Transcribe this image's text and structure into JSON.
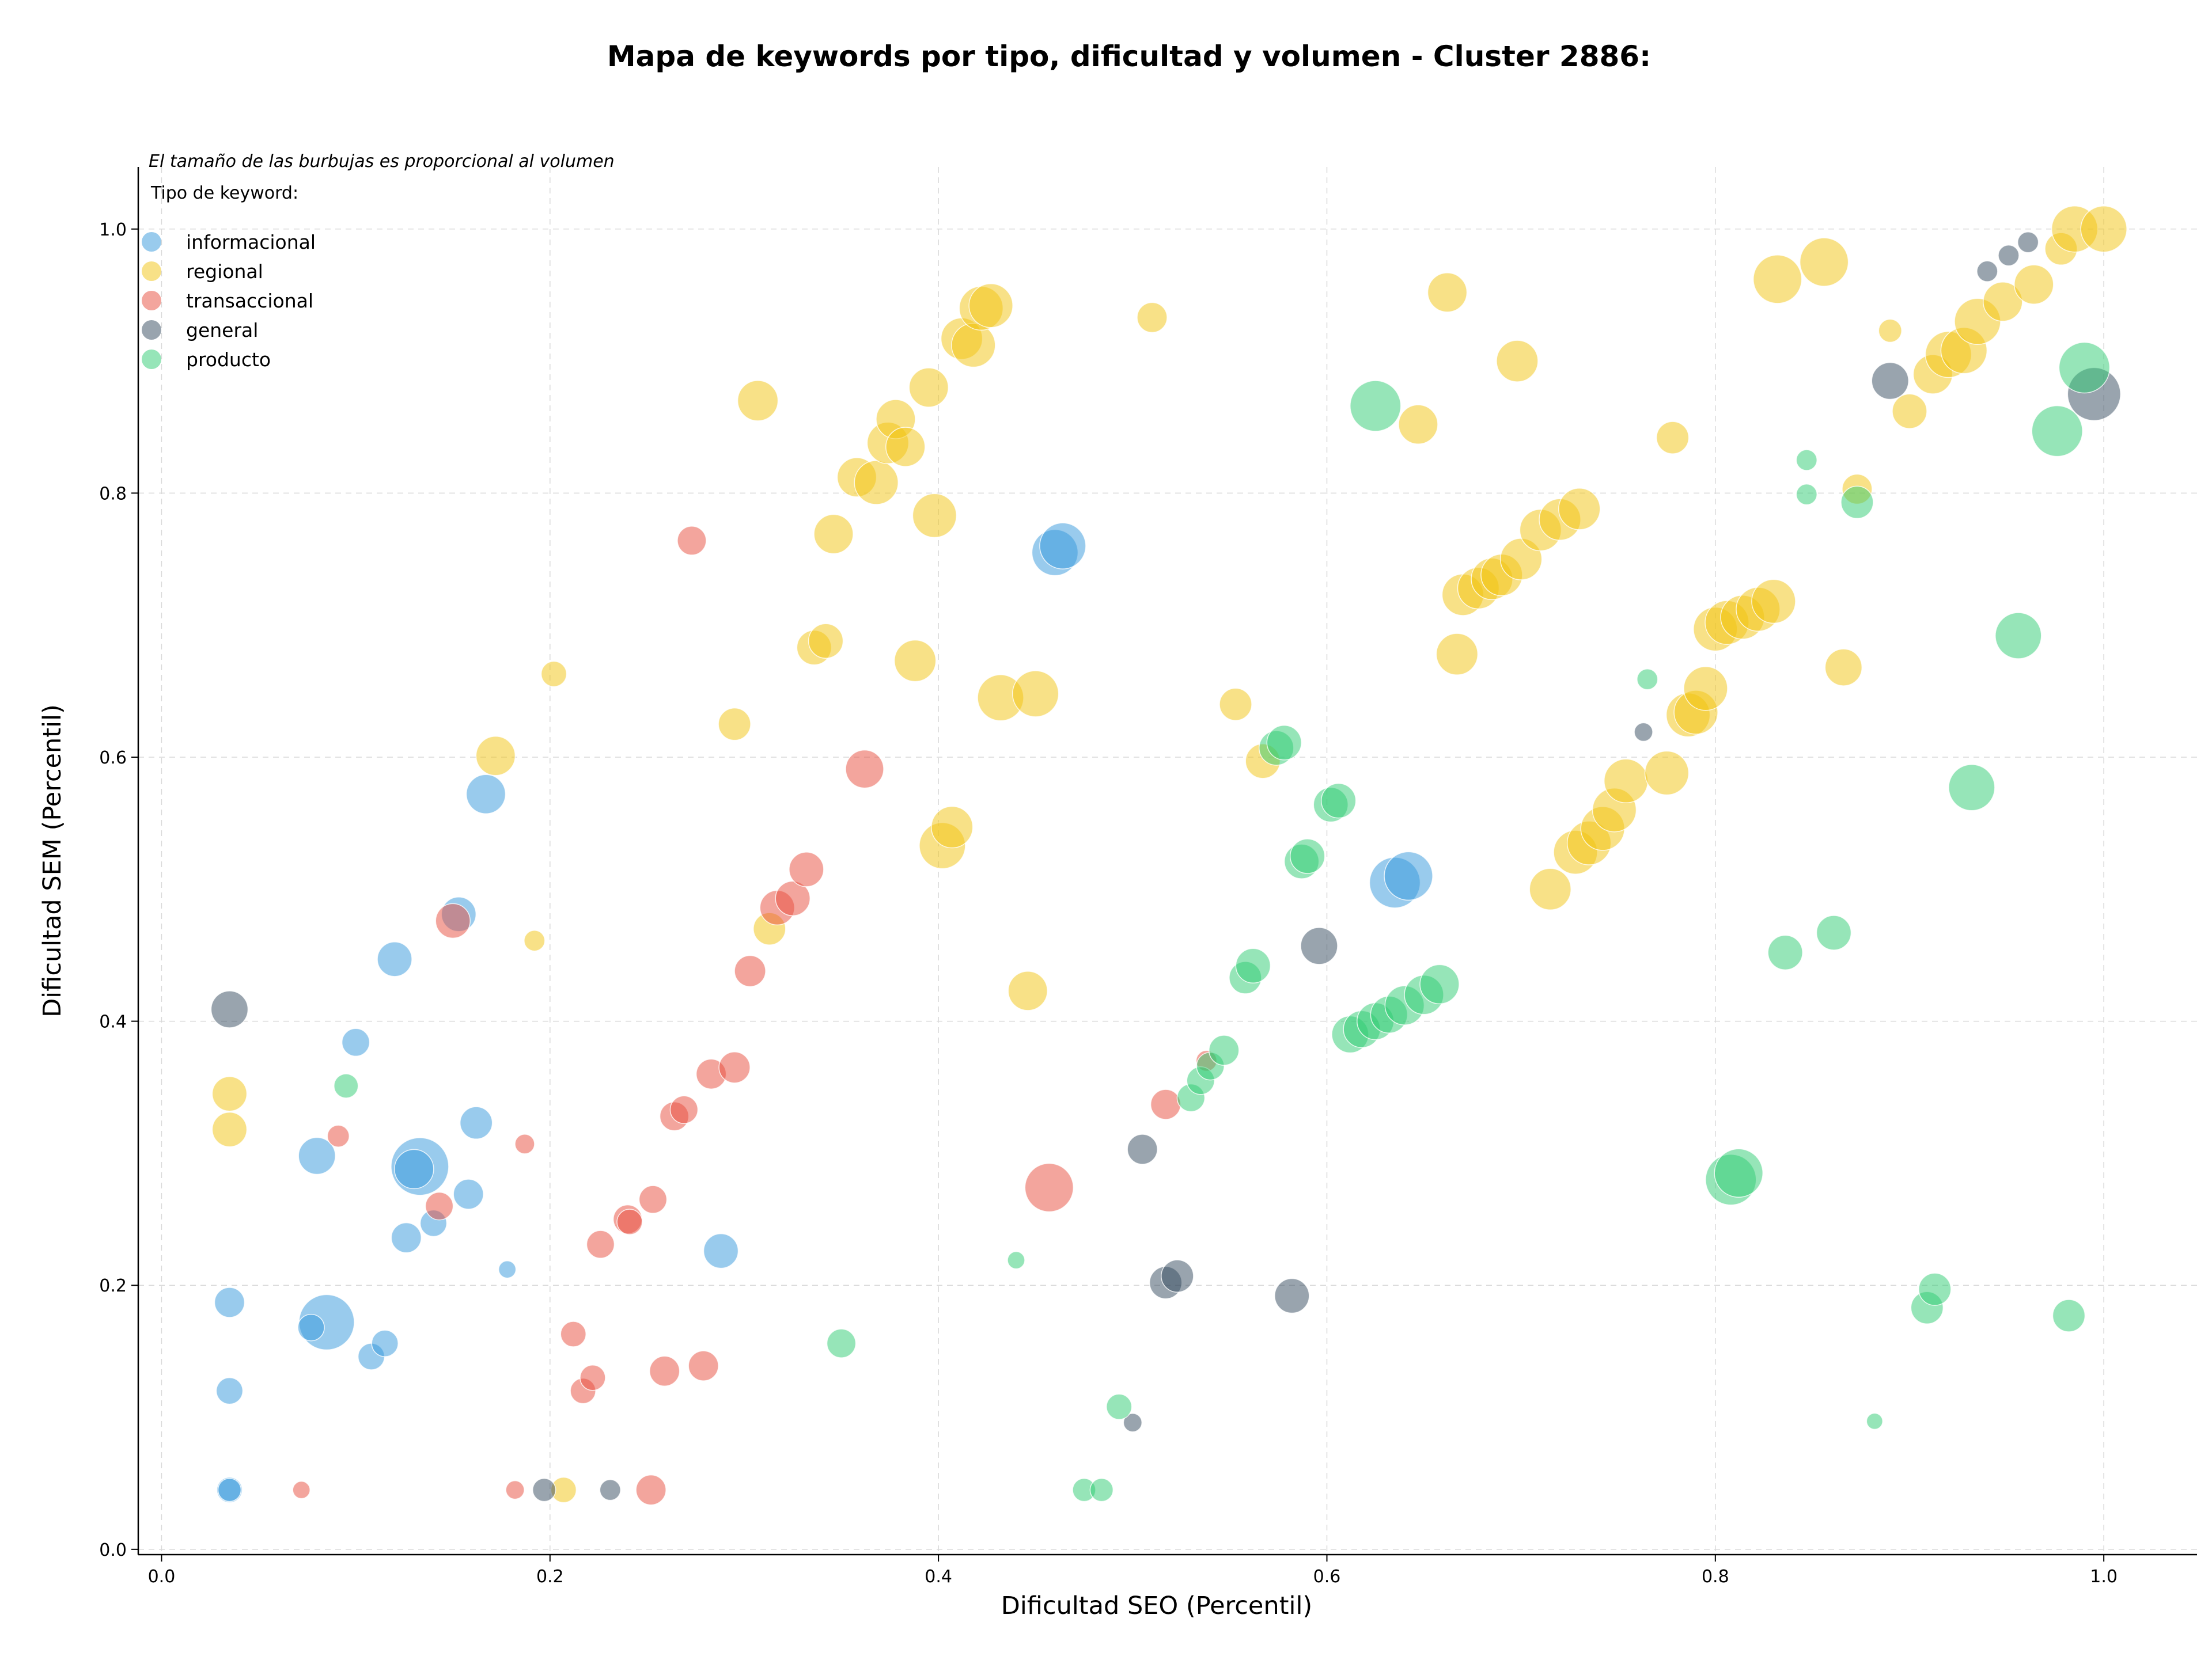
{
  "chart_data": {
    "type": "scatter",
    "title": "Mapa de keywords por tipo, dificultad y volumen - Cluster 2886:",
    "xlabel": "Dificultad SEO (Percentil)",
    "ylabel": "Dificultad SEM (Percentil)",
    "xlim": [
      -0.012,
      1.048
    ],
    "ylim": [
      -0.004,
      1.047
    ],
    "xticks": [
      0.0,
      0.2,
      0.4,
      0.6,
      0.8,
      1.0
    ],
    "yticks": [
      0.0,
      0.2,
      0.4,
      0.6,
      0.8,
      1.0
    ],
    "xtick_labels": [
      "0.0",
      "0.2",
      "0.4",
      "0.6",
      "0.8",
      "1.0"
    ],
    "ytick_labels": [
      "0.0",
      "0.2",
      "0.4",
      "0.6",
      "0.8",
      "1.0"
    ],
    "grid": true,
    "legend_title": "Tipo de keyword:",
    "legend_note": "El tamaño de las burbujas es proporcional al volumen",
    "legend_position": "top-left",
    "series": [
      {
        "name": "informacional",
        "color": "#3498db",
        "points": [
          [
            0.035,
            0.045,
            22
          ],
          [
            0.035,
            0.045,
            20
          ],
          [
            0.035,
            0.12,
            23
          ],
          [
            0.035,
            0.187,
            26
          ],
          [
            0.085,
            0.172,
            48
          ],
          [
            0.077,
            0.168,
            23
          ],
          [
            0.108,
            0.146,
            23
          ],
          [
            0.115,
            0.156,
            23
          ],
          [
            0.08,
            0.298,
            32
          ],
          [
            0.126,
            0.236,
            26
          ],
          [
            0.14,
            0.247,
            23
          ],
          [
            0.133,
            0.29,
            50
          ],
          [
            0.13,
            0.288,
            34
          ],
          [
            0.158,
            0.269,
            26
          ],
          [
            0.162,
            0.323,
            28
          ],
          [
            0.12,
            0.447,
            30
          ],
          [
            0.1,
            0.384,
            24
          ],
          [
            0.153,
            0.481,
            30
          ],
          [
            0.167,
            0.572,
            34
          ],
          [
            0.178,
            0.212,
            15
          ],
          [
            0.288,
            0.226,
            30
          ],
          [
            0.46,
            0.755,
            40
          ],
          [
            0.464,
            0.76,
            40
          ],
          [
            0.635,
            0.505,
            44
          ],
          [
            0.642,
            0.51,
            42
          ]
        ]
      },
      {
        "name": "regional",
        "color": "#f1c40f",
        "points": [
          [
            0.035,
            0.345,
            30
          ],
          [
            0.035,
            0.318,
            30
          ],
          [
            0.172,
            0.601,
            34
          ],
          [
            0.202,
            0.663,
            22
          ],
          [
            0.192,
            0.461,
            18
          ],
          [
            0.207,
            0.045,
            22
          ],
          [
            0.307,
            0.87,
            35
          ],
          [
            0.295,
            0.625,
            28
          ],
          [
            0.313,
            0.47,
            28
          ],
          [
            0.346,
            0.769,
            34
          ],
          [
            0.336,
            0.683,
            30
          ],
          [
            0.342,
            0.688,
            30
          ],
          [
            0.358,
            0.812,
            34
          ],
          [
            0.368,
            0.808,
            38
          ],
          [
            0.374,
            0.838,
            36
          ],
          [
            0.378,
            0.856,
            34
          ],
          [
            0.383,
            0.835,
            34
          ],
          [
            0.395,
            0.88,
            34
          ],
          [
            0.398,
            0.783,
            38
          ],
          [
            0.388,
            0.673,
            36
          ],
          [
            0.402,
            0.533,
            40
          ],
          [
            0.407,
            0.547,
            36
          ],
          [
            0.412,
            0.917,
            36
          ],
          [
            0.418,
            0.912,
            38
          ],
          [
            0.422,
            0.94,
            38
          ],
          [
            0.427,
            0.942,
            38
          ],
          [
            0.432,
            0.645,
            40
          ],
          [
            0.45,
            0.648,
            40
          ],
          [
            0.446,
            0.423,
            34
          ],
          [
            0.51,
            0.933,
            26
          ],
          [
            0.553,
            0.64,
            28
          ],
          [
            0.567,
            0.597,
            30
          ],
          [
            0.647,
            0.852,
            34
          ],
          [
            0.662,
            0.952,
            34
          ],
          [
            0.698,
            0.9,
            36
          ],
          [
            0.667,
            0.678,
            36
          ],
          [
            0.67,
            0.723,
            36
          ],
          [
            0.678,
            0.728,
            36
          ],
          [
            0.685,
            0.735,
            36
          ],
          [
            0.69,
            0.738,
            36
          ],
          [
            0.7,
            0.75,
            36
          ],
          [
            0.71,
            0.772,
            36
          ],
          [
            0.72,
            0.78,
            36
          ],
          [
            0.73,
            0.788,
            36
          ],
          [
            0.715,
            0.5,
            36
          ],
          [
            0.728,
            0.528,
            38
          ],
          [
            0.735,
            0.535,
            38
          ],
          [
            0.742,
            0.546,
            38
          ],
          [
            0.748,
            0.56,
            38
          ],
          [
            0.754,
            0.582,
            38
          ],
          [
            0.775,
            0.588,
            38
          ],
          [
            0.778,
            0.842,
            28
          ],
          [
            0.786,
            0.632,
            38
          ],
          [
            0.79,
            0.634,
            38
          ],
          [
            0.795,
            0.652,
            38
          ],
          [
            0.8,
            0.697,
            38
          ],
          [
            0.806,
            0.702,
            38
          ],
          [
            0.814,
            0.706,
            38
          ],
          [
            0.822,
            0.712,
            38
          ],
          [
            0.83,
            0.718,
            38
          ],
          [
            0.832,
            0.962,
            42
          ],
          [
            0.856,
            0.975,
            42
          ],
          [
            0.866,
            0.668,
            32
          ],
          [
            0.873,
            0.803,
            26
          ],
          [
            0.89,
            0.923,
            20
          ],
          [
            0.9,
            0.862,
            30
          ],
          [
            0.912,
            0.89,
            34
          ],
          [
            0.92,
            0.905,
            40
          ],
          [
            0.928,
            0.908,
            40
          ],
          [
            0.935,
            0.93,
            40
          ],
          [
            0.948,
            0.945,
            34
          ],
          [
            0.964,
            0.958,
            34
          ],
          [
            0.978,
            0.985,
            28
          ],
          [
            0.985,
            1.0,
            40
          ],
          [
            1.0,
            1.0,
            40
          ]
        ]
      },
      {
        "name": "transaccional",
        "color": "#e74c3c",
        "points": [
          [
            0.072,
            0.045,
            15
          ],
          [
            0.182,
            0.045,
            16
          ],
          [
            0.252,
            0.045,
            26
          ],
          [
            0.091,
            0.313,
            19
          ],
          [
            0.187,
            0.307,
            17
          ],
          [
            0.143,
            0.26,
            24
          ],
          [
            0.15,
            0.476,
            30
          ],
          [
            0.212,
            0.163,
            22
          ],
          [
            0.217,
            0.12,
            22
          ],
          [
            0.222,
            0.13,
            22
          ],
          [
            0.226,
            0.231,
            24
          ],
          [
            0.24,
            0.25,
            25
          ],
          [
            0.241,
            0.248,
            22
          ],
          [
            0.253,
            0.265,
            24
          ],
          [
            0.259,
            0.135,
            26
          ],
          [
            0.264,
            0.328,
            25
          ],
          [
            0.269,
            0.333,
            24
          ],
          [
            0.273,
            0.764,
            25
          ],
          [
            0.279,
            0.139,
            26
          ],
          [
            0.283,
            0.36,
            26
          ],
          [
            0.295,
            0.365,
            27
          ],
          [
            0.303,
            0.438,
            27
          ],
          [
            0.317,
            0.486,
            30
          ],
          [
            0.325,
            0.493,
            30
          ],
          [
            0.332,
            0.515,
            30
          ],
          [
            0.362,
            0.591,
            33
          ],
          [
            0.457,
            0.274,
            42
          ],
          [
            0.517,
            0.337,
            26
          ],
          [
            0.538,
            0.37,
            18
          ]
        ]
      },
      {
        "name": "general",
        "color": "#34495e",
        "points": [
          [
            0.035,
            0.409,
            32
          ],
          [
            0.197,
            0.045,
            20
          ],
          [
            0.231,
            0.045,
            18
          ],
          [
            0.5,
            0.096,
            16
          ],
          [
            0.505,
            0.303,
            26
          ],
          [
            0.517,
            0.202,
            28
          ],
          [
            0.523,
            0.207,
            28
          ],
          [
            0.582,
            0.192,
            30
          ],
          [
            0.596,
            0.457,
            32
          ],
          [
            0.763,
            0.619,
            16
          ],
          [
            0.89,
            0.885,
            32
          ],
          [
            0.94,
            0.968,
            18
          ],
          [
            0.951,
            0.98,
            18
          ],
          [
            0.961,
            0.99,
            18
          ],
          [
            0.995,
            0.875,
            46
          ]
        ]
      },
      {
        "name": "producto",
        "color": "#2ecc71",
        "points": [
          [
            0.095,
            0.351,
            21
          ],
          [
            0.35,
            0.156,
            25
          ],
          [
            0.44,
            0.219,
            15
          ],
          [
            0.475,
            0.045,
            20
          ],
          [
            0.484,
            0.045,
            20
          ],
          [
            0.493,
            0.108,
            22
          ],
          [
            0.53,
            0.342,
            24
          ],
          [
            0.535,
            0.355,
            24
          ],
          [
            0.54,
            0.366,
            24
          ],
          [
            0.547,
            0.378,
            26
          ],
          [
            0.558,
            0.433,
            28
          ],
          [
            0.562,
            0.442,
            30
          ],
          [
            0.574,
            0.607,
            30
          ],
          [
            0.578,
            0.611,
            30
          ],
          [
            0.587,
            0.521,
            30
          ],
          [
            0.59,
            0.525,
            30
          ],
          [
            0.602,
            0.564,
            30
          ],
          [
            0.606,
            0.567,
            30
          ],
          [
            0.612,
            0.39,
            32
          ],
          [
            0.618,
            0.394,
            32
          ],
          [
            0.625,
            0.4,
            32
          ],
          [
            0.632,
            0.405,
            32
          ],
          [
            0.64,
            0.412,
            34
          ],
          [
            0.65,
            0.42,
            34
          ],
          [
            0.658,
            0.428,
            34
          ],
          [
            0.625,
            0.866,
            44
          ],
          [
            0.765,
            0.659,
            18
          ],
          [
            0.808,
            0.28,
            44
          ],
          [
            0.812,
            0.285,
            42
          ],
          [
            0.836,
            0.452,
            30
          ],
          [
            0.847,
            0.825,
            18
          ],
          [
            0.847,
            0.799,
            18
          ],
          [
            0.861,
            0.467,
            30
          ],
          [
            0.873,
            0.793,
            28
          ],
          [
            0.882,
            0.097,
            14
          ],
          [
            0.909,
            0.183,
            28
          ],
          [
            0.913,
            0.197,
            28
          ],
          [
            0.932,
            0.577,
            40
          ],
          [
            0.956,
            0.692,
            40
          ],
          [
            0.976,
            0.847,
            44
          ],
          [
            0.982,
            0.177,
            28
          ],
          [
            0.99,
            0.895,
            44
          ]
        ]
      }
    ]
  }
}
